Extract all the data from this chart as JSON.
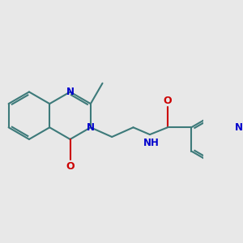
{
  "bg_color": "#e8e8e8",
  "bond_color": "#3d7a7a",
  "n_color": "#0000cc",
  "o_color": "#cc0000",
  "lw": 1.5,
  "figsize": [
    3.0,
    3.0
  ],
  "dpi": 100,
  "xlim": [
    0.0,
    8.5
  ],
  "ylim": [
    1.5,
    8.0
  ]
}
